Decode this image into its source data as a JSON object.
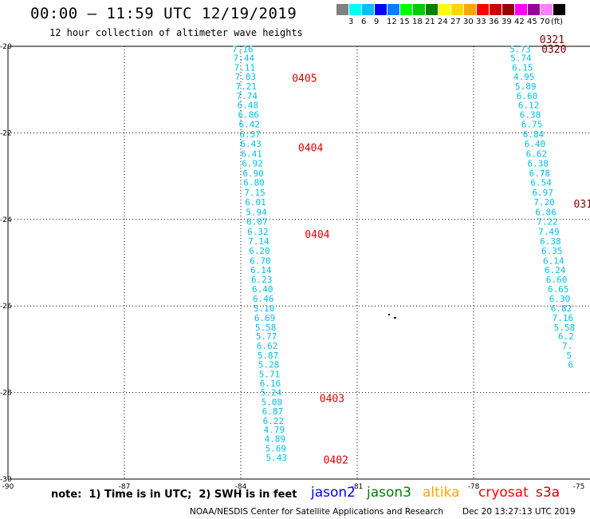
{
  "header": {
    "title": "00:00 – 11:59 UTC 12/19/2019",
    "subtitle": "12 hour collection of altimeter wave heights"
  },
  "legend": {
    "unit": "(ft)",
    "colors": [
      "#808080",
      "#00ffff",
      "#00bfff",
      "#0000ff",
      "#0080ff",
      "#00ff00",
      "#00cc00",
      "#008000",
      "#ffff00",
      "#ffd700",
      "#ffa500",
      "#ff0000",
      "#cc0000",
      "#990000",
      "#ff00ff",
      "#990099",
      "#ff80ff",
      "#000000"
    ],
    "labels": [
      "3",
      "6",
      "9",
      "12",
      "15",
      "18",
      "21",
      "24",
      "27",
      "30",
      "33",
      "36",
      "39",
      "42",
      "45",
      "70"
    ]
  },
  "map_axes": {
    "lon_ticks": [
      -90,
      -87,
      -84,
      -81,
      -78,
      -75
    ],
    "lat_ticks": [
      -20,
      -22,
      -24,
      -26,
      -28,
      -30
    ],
    "lon_labels": [
      "-90",
      "-87",
      "-84",
      "-81",
      "-78",
      "-75"
    ],
    "lat_labels": [
      "-20",
      "-22",
      "-24",
      "-26",
      "-28",
      "-30"
    ]
  },
  "tracks": [
    {
      "satellite": "s3a",
      "points": [
        {
          "lat": -20.06,
          "lon": -83.95,
          "v": "7.16"
        },
        {
          "lat": -20.27,
          "lon": -83.92,
          "v": "7.44"
        },
        {
          "lat": -20.49,
          "lon": -83.9,
          "v": "7.11"
        },
        {
          "lat": -20.7,
          "lon": -83.88,
          "v": "7.03"
        },
        {
          "lat": -20.92,
          "lon": -83.86,
          "v": "7.21"
        },
        {
          "lat": -21.14,
          "lon": -83.84,
          "v": "7.74"
        },
        {
          "lat": -21.36,
          "lon": -83.82,
          "v": "6.48"
        },
        {
          "lat": -21.58,
          "lon": -83.8,
          "v": "6.86"
        },
        {
          "lat": -21.8,
          "lon": -83.78,
          "v": "6.42"
        },
        {
          "lat": -22.03,
          "lon": -83.76,
          "v": "6.57"
        },
        {
          "lat": -22.25,
          "lon": -83.74,
          "v": "6.43"
        },
        {
          "lat": -22.48,
          "lon": -83.72,
          "v": "6.41"
        },
        {
          "lat": -22.7,
          "lon": -83.7,
          "v": "6.92"
        },
        {
          "lat": -22.93,
          "lon": -83.68,
          "v": "6.90"
        },
        {
          "lat": -23.15,
          "lon": -83.66,
          "v": "6.80"
        },
        {
          "lat": -23.38,
          "lon": -83.64,
          "v": "7.15"
        },
        {
          "lat": -23.6,
          "lon": -83.62,
          "v": "6.01"
        },
        {
          "lat": -23.83,
          "lon": -83.6,
          "v": "5.94"
        },
        {
          "lat": -24.05,
          "lon": -83.58,
          "v": "6.07"
        },
        {
          "lat": -24.28,
          "lon": -83.56,
          "v": "6.32"
        },
        {
          "lat": -24.5,
          "lon": -83.54,
          "v": "7.14"
        },
        {
          "lat": -24.72,
          "lon": -83.52,
          "v": "6.20"
        },
        {
          "lat": -24.95,
          "lon": -83.5,
          "v": "6.70"
        },
        {
          "lat": -25.17,
          "lon": -83.48,
          "v": "6.14"
        },
        {
          "lat": -25.39,
          "lon": -83.46,
          "v": "6.23"
        },
        {
          "lat": -25.61,
          "lon": -83.44,
          "v": "6.40"
        },
        {
          "lat": -25.83,
          "lon": -83.42,
          "v": "6.46"
        },
        {
          "lat": -26.05,
          "lon": -83.4,
          "v": "5.10"
        },
        {
          "lat": -26.27,
          "lon": -83.38,
          "v": "6.69"
        },
        {
          "lat": -26.49,
          "lon": -83.36,
          "v": "5.58"
        },
        {
          "lat": -26.7,
          "lon": -83.34,
          "v": "5.77"
        },
        {
          "lat": -26.92,
          "lon": -83.32,
          "v": "6.62"
        },
        {
          "lat": -27.14,
          "lon": -83.3,
          "v": "5.87"
        },
        {
          "lat": -27.35,
          "lon": -83.28,
          "v": "5.28"
        },
        {
          "lat": -27.57,
          "lon": -83.26,
          "v": "5.71"
        },
        {
          "lat": -27.79,
          "lon": -83.24,
          "v": "6.16"
        },
        {
          "lat": -28.0,
          "lon": -83.22,
          "v": "5.24"
        },
        {
          "lat": -28.22,
          "lon": -83.2,
          "v": "5.08"
        },
        {
          "lat": -28.43,
          "lon": -83.18,
          "v": "6.87"
        },
        {
          "lat": -28.65,
          "lon": -83.16,
          "v": "6.22"
        },
        {
          "lat": -28.86,
          "lon": -83.14,
          "v": "4.79"
        },
        {
          "lat": -29.07,
          "lon": -83.12,
          "v": "4.89"
        },
        {
          "lat": -29.29,
          "lon": -83.1,
          "v": "5.69"
        },
        {
          "lat": -29.5,
          "lon": -83.08,
          "v": "5.43"
        }
      ]
    },
    {
      "satellite": "s3a",
      "points": [
        {
          "lat": -20.06,
          "lon": -76.8,
          "v": "5.73"
        },
        {
          "lat": -20.27,
          "lon": -76.78,
          "v": "5.74"
        },
        {
          "lat": -20.49,
          "lon": -76.74,
          "v": "6.15"
        },
        {
          "lat": -20.7,
          "lon": -76.7,
          "v": "4.95"
        },
        {
          "lat": -20.92,
          "lon": -76.66,
          "v": "5.89"
        },
        {
          "lat": -21.14,
          "lon": -76.62,
          "v": "6.60"
        },
        {
          "lat": -21.36,
          "lon": -76.58,
          "v": "6.12"
        },
        {
          "lat": -21.58,
          "lon": -76.54,
          "v": "6.38"
        },
        {
          "lat": -21.8,
          "lon": -76.5,
          "v": "6.75"
        },
        {
          "lat": -22.03,
          "lon": -76.46,
          "v": "6.84"
        },
        {
          "lat": -22.25,
          "lon": -76.42,
          "v": "6.40"
        },
        {
          "lat": -22.48,
          "lon": -76.38,
          "v": "6.62"
        },
        {
          "lat": -22.7,
          "lon": -76.34,
          "v": "6.38"
        },
        {
          "lat": -22.93,
          "lon": -76.3,
          "v": "6.78"
        },
        {
          "lat": -23.15,
          "lon": -76.26,
          "v": "6.54"
        },
        {
          "lat": -23.38,
          "lon": -76.22,
          "v": "6.97"
        },
        {
          "lat": -23.6,
          "lon": -76.18,
          "v": "7.20"
        },
        {
          "lat": -23.83,
          "lon": -76.14,
          "v": "6.86"
        },
        {
          "lat": -24.05,
          "lon": -76.1,
          "v": "7.22"
        },
        {
          "lat": -24.28,
          "lon": -76.06,
          "v": "7.49"
        },
        {
          "lat": -24.5,
          "lon": -76.02,
          "v": "6.38"
        },
        {
          "lat": -24.72,
          "lon": -75.98,
          "v": "6.35"
        },
        {
          "lat": -24.95,
          "lon": -75.94,
          "v": "6.14"
        },
        {
          "lat": -25.17,
          "lon": -75.9,
          "v": "6.24"
        },
        {
          "lat": -25.39,
          "lon": -75.86,
          "v": "6.60"
        },
        {
          "lat": -25.61,
          "lon": -75.82,
          "v": "6.65"
        },
        {
          "lat": -25.83,
          "lon": -75.78,
          "v": "6.30"
        },
        {
          "lat": -26.05,
          "lon": -75.74,
          "v": "6.82"
        },
        {
          "lat": -26.27,
          "lon": -75.7,
          "v": "7.16"
        },
        {
          "lat": -26.49,
          "lon": -75.66,
          "v": "5.58"
        },
        {
          "lat": -26.7,
          "lon": -75.62,
          "v": "6.2"
        },
        {
          "lat": -26.92,
          "lon": -75.58,
          "v": "7."
        },
        {
          "lat": -27.14,
          "lon": -75.54,
          "v": "5"
        },
        {
          "lat": -27.35,
          "lon": -75.5,
          "v": "6"
        }
      ]
    }
  ],
  "time_labels": [
    {
      "text": "0405",
      "lat": -20.75,
      "lon": -82.68,
      "color": "#e00000"
    },
    {
      "text": "0404",
      "lat": -22.35,
      "lon": -82.52,
      "color": "#e00000"
    },
    {
      "text": "0404",
      "lat": -24.35,
      "lon": -82.35,
      "color": "#e00000"
    },
    {
      "text": "0403",
      "lat": -28.15,
      "lon": -81.97,
      "color": "#e00000"
    },
    {
      "text": "0402",
      "lat": -29.57,
      "lon": -81.87,
      "color": "#e00000"
    },
    {
      "text": "0321",
      "lat": -19.85,
      "lon": -76.3,
      "color": "#800000"
    },
    {
      "text": "0320",
      "lat": -20.07,
      "lon": -76.25,
      "color": "#800000"
    },
    {
      "text": "031",
      "lat": -23.65,
      "lon": -75.42,
      "color": "#800000"
    }
  ],
  "footer": {
    "note": "note:  1) Time is in UTC;  2) SWH is in feet",
    "satellites": [
      {
        "name": "jason2",
        "color": "#0000ff"
      },
      {
        "name": "jason3",
        "color": "#008000"
      },
      {
        "name": "altika",
        "color": "#ffa500"
      },
      {
        "name": "cryosat",
        "color": "#ff0000"
      },
      {
        "name": "s3a",
        "color": "#cc0000"
      }
    ],
    "credit": "NOAA/NESDIS Center for Satellite Applications and Research",
    "timestamp": "Dec 20 13:27:13 UTC 2019"
  }
}
